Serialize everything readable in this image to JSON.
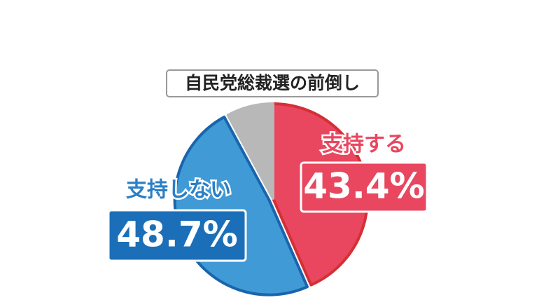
{
  "chart_data": {
    "type": "pie",
    "title": "自民党総裁選の前倒し",
    "categories": [
      "支持する",
      "支持しない",
      null
    ],
    "values": [
      43.4,
      48.7,
      7.9
    ],
    "value_labels": [
      "43.4%",
      "48.7%",
      null
    ],
    "colors": [
      "#e8475f",
      "#3f9ad6",
      "#b8b8b8"
    ]
  }
}
